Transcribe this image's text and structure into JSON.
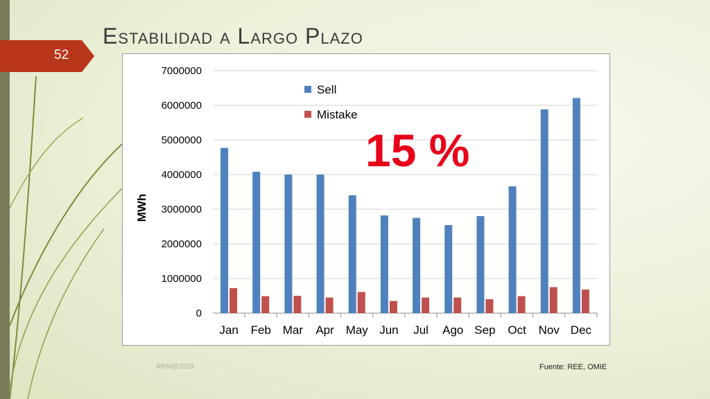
{
  "slide": {
    "title": "Estabilidad a Largo Plazo",
    "page_number": "52",
    "footer_left": "ARM@2019",
    "footer_right": "Fuente: REE, OMIE",
    "overlay_text": "15 %"
  },
  "colors": {
    "sell": "#4f81bd",
    "mistake": "#c0504d",
    "accent": "#b8361a",
    "overlay": "#e8001a"
  },
  "chart_data": {
    "type": "bar",
    "ylabel": "MWh",
    "ylim": [
      0,
      7000000
    ],
    "yticks": [
      "0",
      "1000000",
      "2000000",
      "3000000",
      "4000000",
      "5000000",
      "6000000",
      "7000000"
    ],
    "grid": true,
    "legend_position": "top-center",
    "categories": [
      "Jan",
      "Feb",
      "Mar",
      "Apr",
      "May",
      "Jun",
      "Jul",
      "Ago",
      "Sep",
      "Oct",
      "Nov",
      "Dec"
    ],
    "series": [
      {
        "name": "Sell",
        "values": [
          4770000,
          4080000,
          4000000,
          4000000,
          3400000,
          2820000,
          2750000,
          2540000,
          2800000,
          3660000,
          5880000,
          6210000
        ]
      },
      {
        "name": "Mistake",
        "values": [
          720000,
          490000,
          500000,
          450000,
          610000,
          350000,
          450000,
          450000,
          400000,
          490000,
          750000,
          680000
        ]
      }
    ]
  }
}
